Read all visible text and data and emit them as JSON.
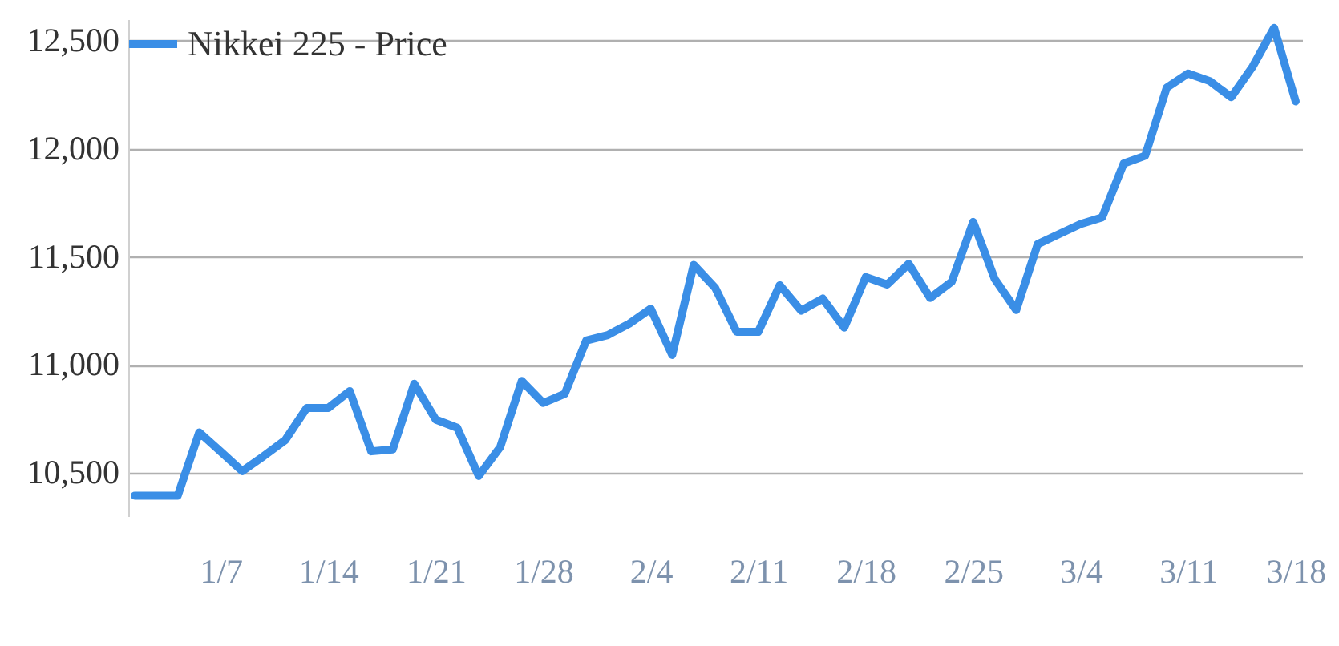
{
  "chart_data": {
    "type": "line",
    "categories": [
      null,
      null,
      null,
      null,
      "1/7",
      null,
      null,
      null,
      null,
      "1/14",
      null,
      null,
      null,
      null,
      "1/21",
      null,
      null,
      null,
      null,
      "1/28",
      null,
      null,
      null,
      null,
      "2/4",
      null,
      null,
      null,
      null,
      "2/11",
      null,
      null,
      null,
      null,
      "2/18",
      null,
      null,
      null,
      null,
      "2/25",
      null,
      null,
      null,
      null,
      "3/4",
      null,
      null,
      null,
      null,
      "3/11",
      null,
      null,
      null,
      null,
      "3/18"
    ],
    "series": [
      {
        "name": "Nikkei 225 - Price",
        "color": "#3a8ee6",
        "values": [
          10395,
          10395,
          10395,
          10688,
          10599,
          10508,
          10578,
          10652,
          10801,
          10801,
          10879,
          10600,
          10609,
          10913,
          10747,
          10709,
          10486,
          10620,
          10926,
          10824,
          10866,
          11113,
          11138,
          11191,
          11260,
          11046,
          11463,
          11357,
          11153,
          11153,
          11369,
          11251,
          11307,
          11173,
          11407,
          11372,
          11468,
          11310,
          11385,
          11662,
          11398,
          11254,
          11559,
          11606,
          11652,
          11683,
          11932,
          11968,
          12283,
          12349,
          12314,
          12239,
          12381,
          12560,
          12220
        ]
      }
    ],
    "ylim": [
      10300,
      12600
    ],
    "yticks": [
      {
        "value": 10500,
        "label": "10,500"
      },
      {
        "value": 11000,
        "label": "11,000"
      },
      {
        "value": 11500,
        "label": "11,500"
      },
      {
        "value": 12000,
        "label": "12,000"
      },
      {
        "value": 12500,
        "label": "12,500"
      }
    ],
    "grid": "y",
    "legend": "top left",
    "marker": "none",
    "line_style": "solid"
  }
}
